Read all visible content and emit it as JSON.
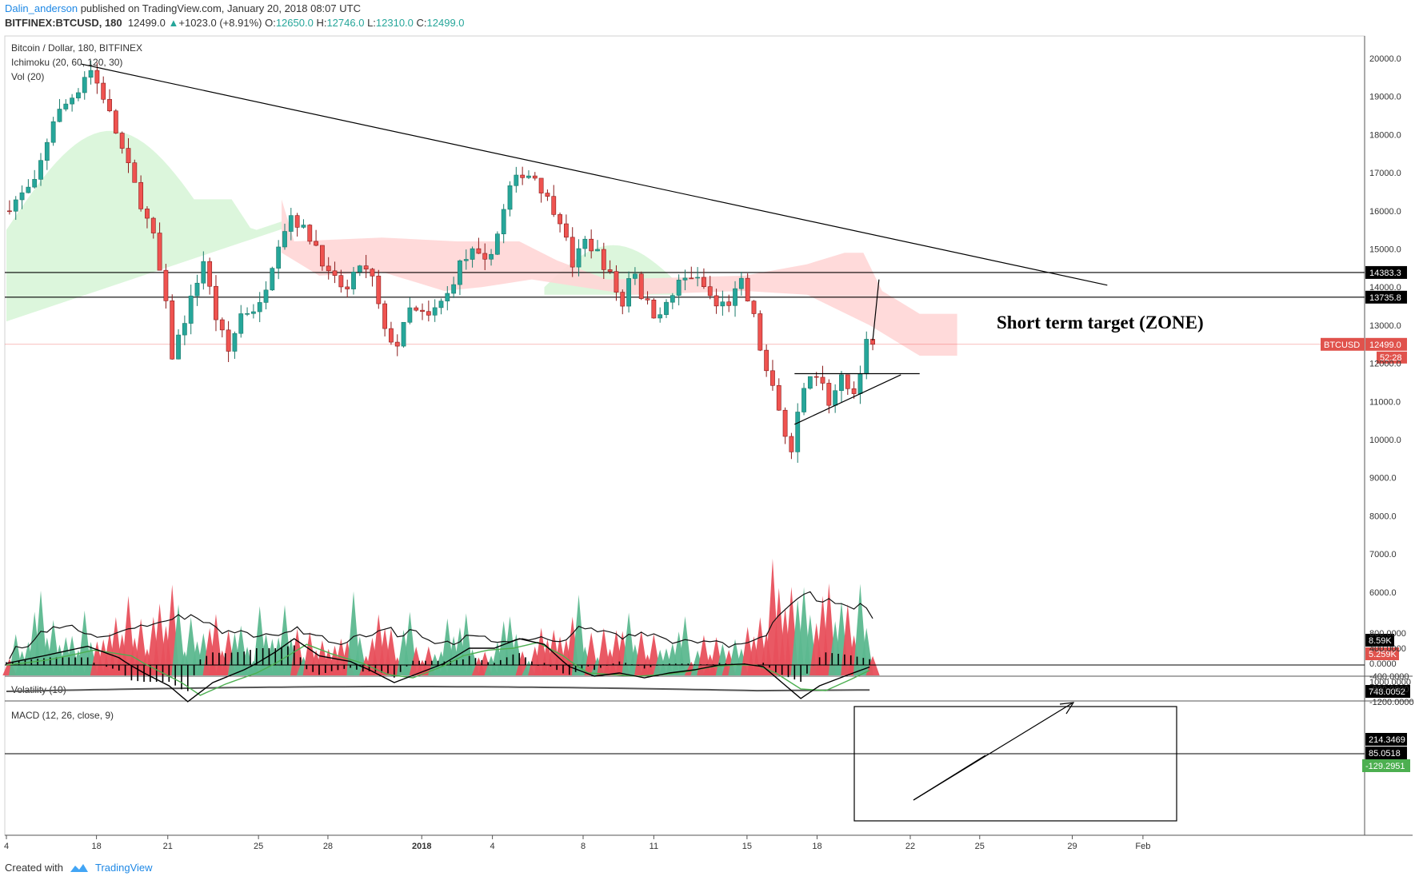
{
  "header": {
    "author": "Dalin_anderson",
    "published": "published on TradingView.com, January 20, 2018 08:07 UTC",
    "symbol_line": "BITFINEX:BTCUSD, 180",
    "last": "12499.0",
    "change": "+1023.0 (+8.91%)",
    "ohlc": {
      "o_label": "O:",
      "o": "12650.0",
      "h_label": "H:",
      "h": "12746.0",
      "l_label": "L:",
      "l": "12310.0",
      "c_label": "C:",
      "c": "12499.0"
    }
  },
  "footer": {
    "created_with": "Created with",
    "brand": "TradingView"
  },
  "colors": {
    "up": "#26a69a",
    "down": "#ef5350",
    "up_vol": "#5cb88f",
    "down_vol": "#e8505c",
    "cloud_green": "#d6f5d6",
    "cloud_red": "#ffd6d6",
    "macd_hist": "#000000",
    "signal": "#4caf50"
  },
  "chart_data": [
    {
      "type": "candlestick",
      "title": "Bitcoin / Dollar, 180, BITFINEX",
      "indicators": [
        "Ichimoku (20, 60, 120, 30)",
        "Vol (20)"
      ],
      "ylim": [
        8400,
        20800
      ],
      "price_ticks": [
        20000,
        19000,
        18000,
        17000,
        16000,
        15000,
        14000,
        13000,
        12000,
        11000,
        10000,
        9000,
        8000,
        7000,
        6000
      ],
      "price_tick_labels": [
        "20000.0",
        "19000.0",
        "18000.0",
        "17000.0",
        "16000.0",
        "15000.0",
        "14000.0",
        "13000.0",
        "12000.0",
        "11000.0",
        "10000.0",
        "9000.0",
        "8000.0",
        "7000.0",
        "6000.0"
      ],
      "x_labels": [
        "4",
        "18",
        "21",
        "25",
        "28",
        "2018",
        "4",
        "8",
        "11",
        "15",
        "18",
        "22",
        "25",
        "29",
        "Feb"
      ],
      "key_points": [
        {
          "d": 0,
          "p": 16000
        },
        {
          "d": 5,
          "p": 16700
        },
        {
          "d": 8,
          "p": 18400
        },
        {
          "d": 12,
          "p": 19200
        },
        {
          "d": 13.7,
          "p": 19800
        },
        {
          "d": 16,
          "p": 19000
        },
        {
          "d": 19,
          "p": 17600
        },
        {
          "d": 22,
          "p": 16200
        },
        {
          "d": 24,
          "p": 15300
        },
        {
          "d": 26,
          "p": 13500
        },
        {
          "d": 27,
          "p": 12200
        },
        {
          "d": 29.5,
          "p": 13400
        },
        {
          "d": 32,
          "p": 14700
        },
        {
          "d": 34,
          "p": 13200
        },
        {
          "d": 36,
          "p": 12300
        },
        {
          "d": 38,
          "p": 13300
        },
        {
          "d": 41,
          "p": 13500
        },
        {
          "d": 44,
          "p": 15200
        },
        {
          "d": 46,
          "p": 15900
        },
        {
          "d": 48,
          "p": 15500
        },
        {
          "d": 50,
          "p": 15100
        },
        {
          "d": 52,
          "p": 14300
        },
        {
          "d": 55,
          "p": 13900
        },
        {
          "d": 57,
          "p": 14600
        },
        {
          "d": 59,
          "p": 14200
        },
        {
          "d": 61,
          "p": 12800
        },
        {
          "d": 63,
          "p": 12500
        },
        {
          "d": 65,
          "p": 13400
        },
        {
          "d": 68,
          "p": 13200
        },
        {
          "d": 71,
          "p": 13800
        },
        {
          "d": 73,
          "p": 14600
        },
        {
          "d": 75,
          "p": 14900
        },
        {
          "d": 77,
          "p": 14600
        },
        {
          "d": 79,
          "p": 15400
        },
        {
          "d": 81,
          "p": 16600
        },
        {
          "d": 83,
          "p": 17000
        },
        {
          "d": 85,
          "p": 16900
        },
        {
          "d": 87,
          "p": 16300
        },
        {
          "d": 89,
          "p": 15800
        },
        {
          "d": 91,
          "p": 14600
        },
        {
          "d": 93,
          "p": 15200
        },
        {
          "d": 95,
          "p": 14900
        },
        {
          "d": 97,
          "p": 14300
        },
        {
          "d": 99,
          "p": 13500
        },
        {
          "d": 100.5,
          "p": 14700
        },
        {
          "d": 102,
          "p": 13800
        },
        {
          "d": 104,
          "p": 13300
        },
        {
          "d": 106,
          "p": 13500
        },
        {
          "d": 108,
          "p": 14100
        },
        {
          "d": 110,
          "p": 14300
        },
        {
          "d": 112,
          "p": 14000
        },
        {
          "d": 114,
          "p": 13500
        },
        {
          "d": 116,
          "p": 13600
        },
        {
          "d": 118,
          "p": 14100
        },
        {
          "d": 120,
          "p": 13200
        },
        {
          "d": 121.5,
          "p": 12000
        },
        {
          "d": 123,
          "p": 11300
        },
        {
          "d": 124,
          "p": 10800
        },
        {
          "d": 125,
          "p": 10200
        },
        {
          "d": 125.8,
          "p": 9400
        },
        {
          "d": 127,
          "p": 10600
        },
        {
          "d": 128.5,
          "p": 11500
        },
        {
          "d": 130,
          "p": 11700
        },
        {
          "d": 132,
          "p": 11000
        },
        {
          "d": 134,
          "p": 11600
        },
        {
          "d": 135.5,
          "p": 11200
        },
        {
          "d": 137,
          "p": 11600
        },
        {
          "d": 138,
          "p": 12700
        },
        {
          "d": 138.6,
          "p": 12499
        }
      ],
      "levels": [
        {
          "value": 14383.3,
          "label": "14383.3"
        },
        {
          "value": 13735.8,
          "label": "13735.8"
        }
      ],
      "last_price": {
        "value": 12499.0,
        "label": "12499.0",
        "symbol": "BTCUSD",
        "countdown": "52:28"
      },
      "annotation": "Short term target  (ZONE)",
      "trendline": [
        {
          "d": 12,
          "p": 19850
        },
        {
          "d": 176,
          "p": 14050
        }
      ],
      "triangle": [
        {
          "d": 126,
          "p": 10400
        },
        {
          "d": 143,
          "p": 11700
        },
        {
          "d": 126,
          "p": 11730
        },
        {
          "d": 146,
          "p": 11730
        }
      ],
      "target_arrow": [
        {
          "d": 138.5,
          "p": 12600
        },
        {
          "d": 139.5,
          "p": 14200
        }
      ],
      "volume": {
        "series": [
          "Volume",
          "Vol MA (20)"
        ],
        "labels": [
          "8.59K",
          "5.259K"
        ]
      }
    },
    {
      "type": "line",
      "title": "Volatility (10)",
      "value_label": "748.0052",
      "top_tick": "1000.0000"
    },
    {
      "type": "line",
      "title": "MACD (12, 26, close, 9)",
      "ylim": [
        -1350,
        900
      ],
      "ticks": [
        800,
        400,
        0,
        -400,
        -800,
        -1200
      ],
      "tick_labels": [
        "800.0000",
        "400.0000",
        "0.0000",
        "-400.0000",
        "-800.0000",
        "-1200.0000"
      ],
      "value_labels": [
        "214.3469",
        "85.0518",
        "-129.2951"
      ],
      "macd_key_points": [
        {
          "d": 0,
          "v": 0
        },
        {
          "d": 6,
          "v": 200
        },
        {
          "d": 13,
          "v": 450
        },
        {
          "d": 18,
          "v": 150
        },
        {
          "d": 22,
          "v": -300
        },
        {
          "d": 26,
          "v": -700
        },
        {
          "d": 29,
          "v": -1200
        },
        {
          "d": 33,
          "v": -600
        },
        {
          "d": 38,
          "v": -200
        },
        {
          "d": 43,
          "v": 300
        },
        {
          "d": 46,
          "v": 650
        },
        {
          "d": 50,
          "v": 200
        },
        {
          "d": 55,
          "v": 50
        },
        {
          "d": 58,
          "v": -200
        },
        {
          "d": 62,
          "v": -600
        },
        {
          "d": 66,
          "v": -300
        },
        {
          "d": 70,
          "v": 0
        },
        {
          "d": 74,
          "v": 400
        },
        {
          "d": 78,
          "v": 400
        },
        {
          "d": 82,
          "v": 650
        },
        {
          "d": 86,
          "v": 500
        },
        {
          "d": 90,
          "v": -100
        },
        {
          "d": 94,
          "v": -400
        },
        {
          "d": 98,
          "v": -300
        },
        {
          "d": 102,
          "v": -450
        },
        {
          "d": 106,
          "v": -300
        },
        {
          "d": 110,
          "v": -200
        },
        {
          "d": 114,
          "v": -50
        },
        {
          "d": 118,
          "v": -20
        },
        {
          "d": 121,
          "v": -100
        },
        {
          "d": 124,
          "v": -600
        },
        {
          "d": 127,
          "v": -1100
        },
        {
          "d": 130,
          "v": -700
        },
        {
          "d": 134,
          "v": -400
        },
        {
          "d": 138.6,
          "v": -70
        }
      ],
      "signal_key_points": [
        {
          "d": 0,
          "v": -50
        },
        {
          "d": 7,
          "v": 100
        },
        {
          "d": 14,
          "v": 350
        },
        {
          "d": 20,
          "v": 200
        },
        {
          "d": 24,
          "v": -200
        },
        {
          "d": 28,
          "v": -600
        },
        {
          "d": 31,
          "v": -1000
        },
        {
          "d": 35,
          "v": -650
        },
        {
          "d": 40,
          "v": -300
        },
        {
          "d": 45,
          "v": 200
        },
        {
          "d": 48,
          "v": 500
        },
        {
          "d": 52,
          "v": 250
        },
        {
          "d": 57,
          "v": 0
        },
        {
          "d": 61,
          "v": -350
        },
        {
          "d": 65,
          "v": -450
        },
        {
          "d": 69,
          "v": -150
        },
        {
          "d": 73,
          "v": 200
        },
        {
          "d": 77,
          "v": 350
        },
        {
          "d": 81,
          "v": 400
        },
        {
          "d": 85,
          "v": 550
        },
        {
          "d": 89,
          "v": 200
        },
        {
          "d": 93,
          "v": -300
        },
        {
          "d": 97,
          "v": -350
        },
        {
          "d": 101,
          "v": -400
        },
        {
          "d": 105,
          "v": -350
        },
        {
          "d": 109,
          "v": -250
        },
        {
          "d": 113,
          "v": -100
        },
        {
          "d": 117,
          "v": -40
        },
        {
          "d": 120,
          "v": -60
        },
        {
          "d": 123,
          "v": -300
        },
        {
          "d": 127,
          "v": -800
        },
        {
          "d": 131,
          "v": -850
        },
        {
          "d": 135,
          "v": -500
        },
        {
          "d": 138.6,
          "v": -160
        }
      ]
    }
  ]
}
